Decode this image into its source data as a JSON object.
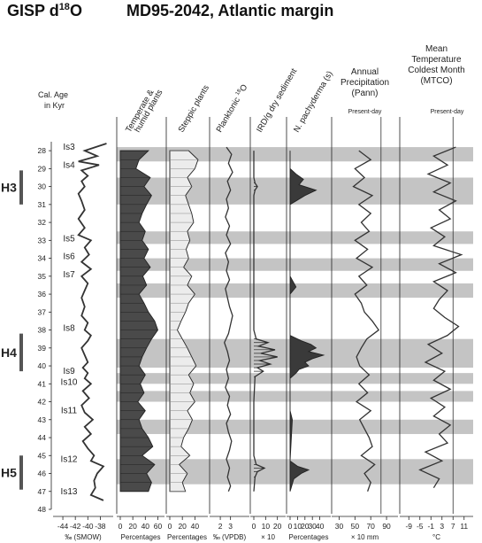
{
  "header": {
    "left_title": "GISP d",
    "left_title_sup": "18",
    "left_title_tail": "O",
    "right_title": "MD95-2042, Atlantic margin"
  },
  "age_axis": {
    "label_line1": "Cal. Age",
    "label_line2": "in Kyr",
    "ticks": [
      28,
      29,
      30,
      31,
      32,
      33,
      34,
      35,
      36,
      37,
      38,
      39,
      40,
      41,
      42,
      43,
      44,
      45,
      46,
      47,
      48
    ],
    "range": [
      27.5,
      48
    ]
  },
  "heinrich_events": [
    {
      "label": "H3",
      "top": 29.1,
      "bottom": 31.0
    },
    {
      "label": "H4",
      "top": 38.2,
      "bottom": 40.3
    },
    {
      "label": "H5",
      "top": 45.0,
      "bottom": 46.9
    }
  ],
  "interstadial_bands": [
    [
      27.8,
      28.6
    ],
    [
      29.5,
      31.0
    ],
    [
      32.5,
      33.2
    ],
    [
      34.0,
      34.7
    ],
    [
      35.4,
      36.2
    ],
    [
      38.5,
      40.1
    ],
    [
      40.4,
      41.0
    ],
    [
      41.4,
      42.0
    ],
    [
      43.0,
      43.8
    ],
    [
      45.2,
      46.6
    ]
  ],
  "interstadial_labels": [
    {
      "label": "Is3",
      "age": 27.8
    },
    {
      "label": "Is4",
      "age": 28.8
    },
    {
      "label": "Is5",
      "age": 32.9
    },
    {
      "label": "Is6",
      "age": 33.9
    },
    {
      "label": "Is7",
      "age": 34.9
    },
    {
      "label": "Is8",
      "age": 37.9
    },
    {
      "label": "Is9",
      "age": 40.3
    },
    {
      "label": "Is10",
      "age": 40.9
    },
    {
      "label": "Is11",
      "age": 42.5
    },
    {
      "label": "Is12",
      "age": 45.2
    },
    {
      "label": "Is13",
      "age": 47.0
    }
  ],
  "chart_data": [
    {
      "type": "line",
      "column": "gisp",
      "xlabel": "‰ (SMOW)",
      "x_ticks": [
        "-44",
        "-42",
        "-40",
        "-38"
      ],
      "xlim": [
        -45,
        -36.5
      ],
      "series": [
        {
          "age": [
            27.6,
            28.0,
            28.3,
            28.6,
            28.8,
            29.1,
            29.4,
            29.7,
            30.0,
            30.4,
            30.8,
            31.3,
            31.8,
            32.3,
            32.7,
            33.0,
            33.4,
            33.8,
            34.2,
            34.6,
            35.0,
            35.4,
            35.8,
            36.2,
            36.7,
            37.2,
            37.6,
            38.0,
            38.3,
            38.6,
            39.0,
            39.4,
            39.8,
            40.1,
            40.4,
            40.7,
            41.0,
            41.4,
            41.8,
            42.2,
            42.6,
            43.0,
            43.4,
            43.8,
            44.2,
            44.6,
            45.0,
            45.3,
            45.6,
            46.0,
            46.4,
            46.8,
            47.2,
            47.5
          ],
          "value": [
            -37.0,
            -40.5,
            -38.5,
            -41.5,
            -38.2,
            -41.0,
            -40.0,
            -41.0,
            -40.5,
            -41.5,
            -41.0,
            -40.5,
            -41.5,
            -40.5,
            -41.5,
            -39.5,
            -40.5,
            -39.8,
            -41.0,
            -39.5,
            -41.0,
            -40.0,
            -40.5,
            -41.0,
            -40.5,
            -41.0,
            -40.0,
            -40.5,
            -39.5,
            -40.0,
            -41.0,
            -40.5,
            -40.0,
            -40.8,
            -40.0,
            -40.5,
            -39.5,
            -40.8,
            -39.8,
            -41.0,
            -40.5,
            -39.2,
            -40.5,
            -39.5,
            -40.8,
            -40.0,
            -39.0,
            -39.5,
            -37.5,
            -38.5,
            -39.0,
            -38.8,
            -39.5,
            -37.5
          ]
        }
      ]
    },
    {
      "type": "area",
      "column": "temperate",
      "title_line1": "Temperate &",
      "title_line2": "humid  plants",
      "xlabel": "Percentages",
      "x_ticks": [
        "0",
        "20",
        "40",
        "60"
      ],
      "xlim": [
        0,
        65
      ],
      "series": [
        {
          "age": [
            28.0,
            28.5,
            29.0,
            29.5,
            30.0,
            30.5,
            31.0,
            31.5,
            32.0,
            32.5,
            33.0,
            33.5,
            34.0,
            34.5,
            35.0,
            35.5,
            36.0,
            36.5,
            37.0,
            37.5,
            38.0,
            38.5,
            39.0,
            39.5,
            40.0,
            40.5,
            41.0,
            41.5,
            42.0,
            42.5,
            43.0,
            43.5,
            44.0,
            44.5,
            45.0,
            45.5,
            46.0,
            46.5,
            47.0
          ],
          "value": [
            45,
            30,
            25,
            48,
            38,
            50,
            42,
            35,
            30,
            40,
            35,
            45,
            38,
            48,
            36,
            42,
            30,
            38,
            45,
            55,
            60,
            50,
            42,
            35,
            30,
            40,
            32,
            38,
            28,
            40,
            30,
            35,
            45,
            52,
            35,
            55,
            42,
            50,
            45
          ]
        }
      ]
    },
    {
      "type": "area",
      "column": "steppic",
      "title": "Steppic plants",
      "xlabel": "Percentages",
      "x_ticks": [
        "0",
        "20",
        "40"
      ],
      "xlim": [
        0,
        55
      ],
      "series": [
        {
          "age": [
            28.0,
            28.5,
            29.0,
            29.5,
            30.0,
            30.5,
            31.0,
            31.5,
            32.0,
            32.5,
            33.0,
            33.5,
            34.0,
            34.5,
            35.0,
            35.5,
            36.0,
            36.5,
            37.0,
            37.5,
            38.0,
            38.5,
            39.0,
            39.5,
            40.0,
            40.5,
            41.0,
            41.5,
            42.0,
            42.5,
            43.0,
            43.5,
            44.0,
            44.5,
            45.0,
            45.5,
            46.0,
            46.5,
            47.0
          ],
          "value": [
            30,
            45,
            40,
            28,
            35,
            25,
            30,
            35,
            38,
            28,
            32,
            26,
            30,
            22,
            35,
            28,
            40,
            30,
            25,
            18,
            12,
            20,
            28,
            35,
            42,
            30,
            38,
            32,
            40,
            28,
            36,
            30,
            22,
            18,
            32,
            15,
            28,
            20,
            25
          ]
        }
      ]
    },
    {
      "type": "line",
      "column": "planktonic",
      "title": "Planktonic",
      "title_sup": "18",
      "title_tail": "O",
      "xlabel": "‰ (VPDB)",
      "x_ticks": [
        "2",
        "3"
      ],
      "xlim": [
        1.3,
        4.5
      ],
      "series": [
        {
          "age": [
            27.8,
            28.2,
            28.7,
            29.2,
            29.7,
            30.2,
            30.7,
            31.2,
            31.7,
            32.2,
            32.7,
            33.2,
            33.7,
            34.2,
            34.7,
            35.2,
            35.7,
            36.2,
            36.7,
            37.2,
            37.7,
            38.2,
            38.7,
            39.2,
            39.7,
            40.2,
            40.7,
            41.2,
            41.7,
            42.2,
            42.7,
            43.2,
            43.7,
            44.2,
            44.7,
            45.2,
            45.7,
            46.2,
            46.7,
            47.0
          ],
          "value": [
            2.6,
            3.1,
            2.8,
            3.2,
            2.7,
            3.0,
            2.6,
            2.8,
            2.5,
            2.9,
            2.6,
            3.0,
            2.5,
            2.8,
            2.6,
            2.9,
            2.5,
            2.7,
            2.9,
            3.2,
            3.0,
            2.8,
            2.4,
            2.7,
            2.9,
            2.6,
            2.8,
            2.5,
            2.9,
            2.7,
            3.0,
            2.6,
            2.8,
            3.1,
            2.9,
            2.6,
            2.9,
            2.7,
            3.0,
            2.8
          ]
        }
      ]
    },
    {
      "type": "line",
      "column": "ird",
      "title": "IRD/g dry sediment",
      "xlabel": "× 10",
      "x_ticks": [
        "0",
        "10",
        "20"
      ],
      "xlim": [
        0,
        24
      ],
      "series": [
        {
          "age": [
            28.0,
            29.0,
            29.5,
            29.8,
            30.0,
            30.2,
            30.5,
            35.0,
            38.0,
            38.5,
            38.7,
            38.9,
            39.1,
            39.3,
            39.5,
            39.7,
            39.9,
            40.1,
            40.3,
            40.6,
            42.0,
            45.0,
            45.5,
            45.7,
            45.9,
            46.2,
            47.0
          ],
          "value": [
            0,
            0,
            0,
            1,
            3,
            1,
            0,
            0,
            0,
            2,
            12,
            4,
            18,
            6,
            20,
            5,
            14,
            3,
            8,
            1,
            0,
            0,
            2,
            9,
            3,
            1,
            0
          ]
        }
      ]
    },
    {
      "type": "area",
      "column": "pachyderma",
      "title": "N. pachyderma (s)",
      "xlabel": "Percentages",
      "x_ticks": [
        "0",
        "10",
        "20",
        "30",
        "40"
      ],
      "xlim": [
        0,
        50
      ],
      "series": [
        {
          "age": [
            28.0,
            29.0,
            29.3,
            29.6,
            29.9,
            30.2,
            30.5,
            30.8,
            31.0,
            35.0,
            35.6,
            36.0,
            38.3,
            38.6,
            38.8,
            39.0,
            39.2,
            39.4,
            39.6,
            39.8,
            40.0,
            40.2,
            40.4,
            40.7,
            42.5,
            43.0,
            45.3,
            45.6,
            45.8,
            46.0,
            46.3,
            47.0
          ],
          "value": [
            0,
            0,
            8,
            18,
            12,
            35,
            20,
            8,
            0,
            0,
            8,
            0,
            0,
            15,
            28,
            35,
            25,
            45,
            30,
            20,
            25,
            12,
            8,
            0,
            0,
            3,
            0,
            10,
            25,
            15,
            5,
            0
          ]
        }
      ]
    },
    {
      "type": "line",
      "column": "pann",
      "title_line1": "Annual",
      "title_line2": "Precipitation",
      "title_line3": "(Pann)",
      "note": "Present-day",
      "xlabel": "× 10  mm",
      "x_ticks": [
        "30",
        "50",
        "70",
        "90"
      ],
      "xlim": [
        25,
        100
      ],
      "present_day": 83,
      "series": [
        {
          "age": [
            28.0,
            28.5,
            29.0,
            29.5,
            30.0,
            30.5,
            31.0,
            31.5,
            32.0,
            32.5,
            33.0,
            33.5,
            34.0,
            34.5,
            35.0,
            35.5,
            36.0,
            36.5,
            37.0,
            37.5,
            38.0,
            38.5,
            39.0,
            39.5,
            40.0,
            40.5,
            41.0,
            41.5,
            42.0,
            42.5,
            43.0,
            43.5,
            44.0,
            44.5,
            45.0,
            45.5,
            46.0,
            46.5,
            47.0
          ],
          "value": [
            55,
            70,
            50,
            62,
            48,
            72,
            55,
            70,
            58,
            68,
            50,
            66,
            52,
            72,
            55,
            65,
            50,
            58,
            62,
            72,
            80,
            65,
            58,
            52,
            56,
            68,
            55,
            66,
            52,
            70,
            56,
            62,
            68,
            72,
            58,
            75,
            62,
            70,
            66
          ]
        }
      ]
    },
    {
      "type": "line",
      "column": "mtco",
      "title_line1": "Mean",
      "title_line2": "Temperature",
      "title_line3": "Coldest Month",
      "title_line4": "(MTCO)",
      "note": "Present-day",
      "xlabel": "°C",
      "x_ticks": [
        "-9",
        "-5",
        "-1",
        "3",
        "7",
        "11"
      ],
      "xlim": [
        -11,
        13
      ],
      "present_day": 7,
      "series": [
        {
          "age": [
            27.8,
            28.3,
            28.8,
            29.3,
            29.8,
            30.3,
            30.8,
            31.3,
            31.8,
            32.3,
            32.8,
            33.3,
            33.8,
            34.3,
            34.8,
            35.3,
            35.8,
            36.3,
            36.8,
            37.3,
            37.8,
            38.3,
            38.8,
            39.3,
            39.8,
            40.3,
            40.8,
            41.3,
            41.8,
            42.3,
            42.8,
            43.3,
            43.8,
            44.3,
            44.8,
            45.3,
            45.8,
            46.3,
            46.8
          ],
          "value": [
            8,
            0,
            5,
            -2,
            6,
            0,
            8,
            2,
            6,
            -1,
            4,
            0,
            10,
            2,
            8,
            0,
            5,
            2,
            0,
            4,
            9,
            5,
            -2,
            3,
            -3,
            4,
            0,
            6,
            -1,
            4,
            0,
            6,
            2,
            5,
            -3,
            3,
            -5,
            2,
            0
          ]
        }
      ]
    }
  ],
  "x_axis_labels": {
    "gisp": "‰ (SMOW)",
    "temperate": "Percentages",
    "steppic": "Percentages",
    "planktonic": "‰ (VPDB)",
    "ird": "× 10",
    "pachyderma": "Percentages",
    "pann": "× 10  mm",
    "mtco": "°C"
  }
}
